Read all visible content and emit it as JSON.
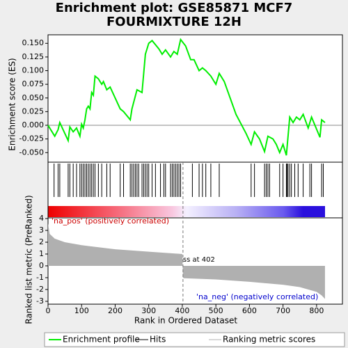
{
  "chart_data": [
    {
      "type": "line",
      "title": [
        "Enrichment plot: GSE85871 MCF7",
        "FOURMIXTURE 12H"
      ],
      "y_label": "Enrichment score (ES)",
      "xlim": [
        0,
        877
      ],
      "ylim": [
        -0.0675,
        0.1656
      ],
      "yticks": [
        {
          "value": -0.05,
          "label": "-0.050"
        },
        {
          "value": -0.025,
          "label": "-0.025"
        },
        {
          "value": 0,
          "label": "0.000"
        },
        {
          "value": 0.025,
          "label": "0.025"
        },
        {
          "value": 0.05,
          "label": "0.050"
        },
        {
          "value": 0.075,
          "label": "0.075"
        },
        {
          "value": 0.1,
          "label": "0.100"
        },
        {
          "value": 0.125,
          "label": "0.125"
        },
        {
          "value": 0.15,
          "label": "0.150"
        }
      ],
      "series": [
        {
          "name": "Enrichment profile",
          "color": "#00ee00",
          "x": [
            0,
            5,
            20,
            30,
            35,
            60,
            65,
            75,
            85,
            95,
            100,
            105,
            110,
            115,
            120,
            125,
            130,
            135,
            140,
            150,
            160,
            165,
            175,
            185,
            215,
            225,
            245,
            250,
            265,
            280,
            290,
            300,
            310,
            330,
            340,
            350,
            365,
            375,
            385,
            395,
            410,
            425,
            435,
            450,
            460,
            470,
            485,
            500,
            510,
            525,
            560,
            590,
            605,
            615,
            630,
            645,
            655,
            670,
            680,
            690,
            700,
            710,
            720,
            730,
            740,
            750,
            760,
            775,
            785,
            810,
            815,
            825
          ],
          "values": [
            0,
            -0.005,
            -0.02,
            -0.008,
            0.005,
            -0.028,
            -0.003,
            -0.012,
            -0.005,
            -0.02,
            0.002,
            -0.005,
            0.01,
            0.03,
            0.035,
            0.03,
            0.06,
            0.055,
            0.09,
            0.085,
            0.075,
            0.08,
            0.065,
            0.07,
            0.03,
            0.025,
            0.01,
            0.03,
            0.065,
            0.06,
            0.13,
            0.15,
            0.155,
            0.14,
            0.13,
            0.138,
            0.125,
            0.135,
            0.13,
            0.157,
            0.145,
            0.12,
            0.12,
            0.1,
            0.105,
            0.1,
            0.09,
            0.075,
            0.095,
            0.08,
            0.02,
            -0.015,
            -0.035,
            -0.012,
            -0.025,
            -0.048,
            -0.02,
            -0.025,
            -0.035,
            -0.05,
            -0.035,
            -0.055,
            0.015,
            0.005,
            0.015,
            0.01,
            0.02,
            -0.005,
            0.015,
            -0.022,
            0.01,
            0.005
          ]
        }
      ]
    },
    {
      "type": "hits",
      "xlim": [
        0,
        877
      ],
      "series": [
        {
          "name": "Hits",
          "color": "#000000",
          "x": [
            18,
            30,
            35,
            60,
            65,
            75,
            85,
            95,
            100,
            105,
            110,
            115,
            120,
            125,
            130,
            135,
            140,
            150,
            160,
            175,
            185,
            215,
            225,
            245,
            250,
            255,
            260,
            265,
            270,
            280,
            285,
            290,
            295,
            300,
            310,
            320,
            335,
            345,
            350,
            365,
            370,
            375,
            380,
            385,
            390,
            395,
            430,
            450,
            460,
            470,
            485,
            510,
            605,
            615,
            645,
            650,
            655,
            660,
            690,
            700,
            710,
            712,
            715,
            720,
            725,
            735,
            745,
            760,
            780,
            785,
            815,
            820
          ]
        }
      ]
    },
    {
      "type": "area",
      "y_label": "Ranked list metric (PreRanked)",
      "x_label": "Rank in Ordered Dataset",
      "xlim": [
        0,
        877
      ],
      "ylim": [
        -3.24,
        4.06
      ],
      "xticks": [
        0,
        100,
        200,
        300,
        400,
        500,
        600,
        700,
        800
      ],
      "yticks": [
        4,
        3,
        2,
        1,
        0,
        -1,
        -2,
        -3
      ],
      "annotations": [
        "'na_pos' (positively correlated)",
        "'na_neg' (negatively correlated)",
        "Zero cross at 402"
      ],
      "zero_cross": 402,
      "series": [
        {
          "name": "Ranking metric scores",
          "color": "#b0b0b0",
          "x": [
            0,
            5,
            20,
            50,
            100,
            200,
            300,
            400,
            402,
            405,
            500,
            600,
            700,
            750,
            800,
            815,
            825
          ],
          "values": [
            3.6,
            2.7,
            2.3,
            2.0,
            1.75,
            1.4,
            1.2,
            1.0,
            -1.0,
            -1.05,
            -1.15,
            -1.35,
            -1.6,
            -1.8,
            -2.2,
            -2.5,
            -2.8
          ]
        }
      ]
    }
  ]
}
